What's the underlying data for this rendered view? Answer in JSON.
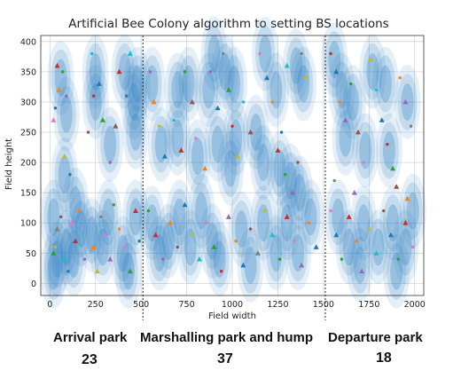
{
  "chart_data": {
    "type": "scatter",
    "title": "Artificial Bee Colony algorithm to setting BS locations",
    "xlabel": "Field width",
    "ylabel": "Field height",
    "xlim": [
      -50,
      2050
    ],
    "ylim": [
      -20,
      410
    ],
    "xticks": [
      0,
      250,
      500,
      750,
      1000,
      1250,
      1500,
      1750,
      2000
    ],
    "yticks": [
      0,
      50,
      100,
      150,
      200,
      250,
      300,
      350,
      400
    ],
    "grid": true,
    "dividers_x": [
      510,
      1510
    ],
    "colors": {
      "coverage": "#2a7fc1",
      "points": [
        "#1f77b4",
        "#ff7f0e",
        "#2ca02c",
        "#d62728",
        "#9467bd",
        "#8c564b",
        "#e377c2",
        "#7f7f7f",
        "#bcbd22",
        "#17becf"
      ]
    },
    "base_stations": [
      [
        60,
        340
      ],
      [
        20,
        110
      ],
      [
        80,
        180
      ],
      [
        90,
        60
      ],
      [
        40,
        40
      ],
      [
        170,
        90
      ],
      [
        130,
        40
      ],
      [
        250,
        350
      ],
      [
        250,
        300
      ],
      [
        230,
        80
      ],
      [
        320,
        110
      ],
      [
        290,
        60
      ],
      [
        410,
        350
      ],
      [
        330,
        230
      ],
      [
        20,
        20
      ],
      [
        400,
        50
      ],
      [
        140,
        130
      ],
      [
        90,
        280
      ],
      [
        480,
        330
      ],
      [
        460,
        300
      ],
      [
        470,
        250
      ],
      [
        470,
        110
      ],
      [
        430,
        20
      ],
      [
        560,
        330
      ],
      [
        610,
        230
      ],
      [
        700,
        240
      ],
      [
        760,
        330
      ],
      [
        810,
        210
      ],
      [
        870,
        320
      ],
      [
        900,
        380
      ],
      [
        960,
        350
      ],
      [
        1010,
        330
      ],
      [
        1020,
        240
      ],
      [
        990,
        190
      ],
      [
        1180,
        380
      ],
      [
        1240,
        320
      ],
      [
        1350,
        360
      ],
      [
        1390,
        330
      ],
      [
        1260,
        190
      ],
      [
        1320,
        170
      ],
      [
        1370,
        150
      ],
      [
        560,
        100
      ],
      [
        650,
        70
      ],
      [
        710,
        110
      ],
      [
        770,
        60
      ],
      [
        830,
        120
      ],
      [
        890,
        70
      ],
      [
        930,
        40
      ],
      [
        1050,
        90
      ],
      [
        1100,
        30
      ],
      [
        1170,
        100
      ],
      [
        1240,
        50
      ],
      [
        1300,
        100
      ],
      [
        1360,
        50
      ],
      [
        1430,
        110
      ],
      [
        920,
        230
      ],
      [
        700,
        320
      ],
      [
        600,
        50
      ],
      [
        1130,
        250
      ],
      [
        1170,
        200
      ],
      [
        1560,
        370
      ],
      [
        1600,
        320
      ],
      [
        1660,
        300
      ],
      [
        1770,
        350
      ],
      [
        1840,
        330
      ],
      [
        1960,
        300
      ],
      [
        1620,
        240
      ],
      [
        1730,
        220
      ],
      [
        1860,
        220
      ],
      [
        1580,
        110
      ],
      [
        1640,
        60
      ],
      [
        1720,
        100
      ],
      [
        1800,
        60
      ],
      [
        1880,
        100
      ],
      [
        1950,
        60
      ],
      [
        1900,
        20
      ],
      [
        1990,
        120
      ],
      [
        1700,
        30
      ]
    ],
    "points": [
      [
        30,
        290,
        0,
        "d"
      ],
      [
        50,
        320,
        1,
        "^"
      ],
      [
        70,
        350,
        2,
        "d"
      ],
      [
        40,
        360,
        3,
        "^"
      ],
      [
        90,
        310,
        4,
        "d"
      ],
      [
        20,
        270,
        6,
        "^"
      ],
      [
        60,
        110,
        5,
        "d"
      ],
      [
        40,
        90,
        7,
        "^"
      ],
      [
        30,
        60,
        8,
        "d"
      ],
      [
        80,
        40,
        9,
        "^"
      ],
      [
        100,
        20,
        0,
        "d"
      ],
      [
        20,
        50,
        2,
        "^"
      ],
      [
        160,
        120,
        1,
        "d"
      ],
      [
        140,
        70,
        3,
        "^"
      ],
      [
        190,
        40,
        4,
        "d"
      ],
      [
        120,
        100,
        6,
        "^"
      ],
      [
        110,
        180,
        0,
        "d"
      ],
      [
        80,
        210,
        8,
        "^"
      ],
      [
        230,
        380,
        9,
        "d"
      ],
      [
        270,
        330,
        0,
        "^"
      ],
      [
        240,
        310,
        3,
        "d"
      ],
      [
        290,
        270,
        2,
        "^"
      ],
      [
        210,
        250,
        5,
        "d"
      ],
      [
        240,
        60,
        1,
        "^"
      ],
      [
        300,
        80,
        6,
        "d"
      ],
      [
        330,
        40,
        4,
        "^"
      ],
      [
        280,
        110,
        7,
        "d"
      ],
      [
        260,
        20,
        8,
        "^"
      ],
      [
        350,
        130,
        2,
        "d"
      ],
      [
        380,
        350,
        3,
        "^"
      ],
      [
        420,
        310,
        0,
        "d"
      ],
      [
        440,
        380,
        9,
        "^"
      ],
      [
        330,
        200,
        4,
        "d"
      ],
      [
        360,
        260,
        5,
        "^"
      ],
      [
        410,
        60,
        6,
        "d"
      ],
      [
        440,
        20,
        2,
        "^"
      ],
      [
        380,
        90,
        1,
        "d"
      ],
      [
        470,
        120,
        3,
        "^"
      ],
      [
        490,
        70,
        0,
        "d"
      ],
      [
        550,
        350,
        4,
        "d"
      ],
      [
        570,
        300,
        1,
        "^"
      ],
      [
        600,
        260,
        8,
        "d"
      ],
      [
        630,
        210,
        0,
        "^"
      ],
      [
        680,
        270,
        9,
        "d"
      ],
      [
        720,
        220,
        3,
        "^"
      ],
      [
        740,
        350,
        2,
        "d"
      ],
      [
        780,
        300,
        5,
        "^"
      ],
      [
        800,
        240,
        6,
        "d"
      ],
      [
        850,
        190,
        1,
        "^"
      ],
      [
        880,
        350,
        4,
        "d"
      ],
      [
        920,
        290,
        0,
        "^"
      ],
      [
        950,
        380,
        7,
        "d"
      ],
      [
        980,
        320,
        2,
        "^"
      ],
      [
        1000,
        260,
        3,
        "d"
      ],
      [
        1030,
        210,
        8,
        "^"
      ],
      [
        1060,
        300,
        9,
        "d"
      ],
      [
        1100,
        250,
        5,
        "^"
      ],
      [
        1150,
        380,
        6,
        "d"
      ],
      [
        1190,
        340,
        0,
        "^"
      ],
      [
        1220,
        300,
        1,
        "d"
      ],
      [
        1250,
        220,
        3,
        "^"
      ],
      [
        1290,
        180,
        2,
        "d"
      ],
      [
        1330,
        150,
        4,
        "^"
      ],
      [
        1360,
        200,
        5,
        "d"
      ],
      [
        1400,
        340,
        8,
        "^"
      ],
      [
        1380,
        380,
        7,
        "d"
      ],
      [
        1300,
        360,
        9,
        "^"
      ],
      [
        1270,
        250,
        0,
        "d"
      ],
      [
        540,
        120,
        2,
        "d"
      ],
      [
        580,
        80,
        3,
        "^"
      ],
      [
        620,
        40,
        4,
        "d"
      ],
      [
        660,
        100,
        1,
        "^"
      ],
      [
        700,
        60,
        5,
        "d"
      ],
      [
        740,
        130,
        0,
        "^"
      ],
      [
        780,
        80,
        8,
        "d"
      ],
      [
        820,
        40,
        9,
        "^"
      ],
      [
        860,
        100,
        6,
        "d"
      ],
      [
        900,
        60,
        2,
        "^"
      ],
      [
        940,
        20,
        3,
        "d"
      ],
      [
        980,
        110,
        4,
        "^"
      ],
      [
        1020,
        70,
        1,
        "d"
      ],
      [
        1060,
        30,
        0,
        "^"
      ],
      [
        1100,
        90,
        5,
        "d"
      ],
      [
        1140,
        50,
        7,
        "^"
      ],
      [
        1180,
        120,
        8,
        "d"
      ],
      [
        1220,
        80,
        9,
        "^"
      ],
      [
        1260,
        40,
        2,
        "d"
      ],
      [
        1300,
        110,
        3,
        "^"
      ],
      [
        1340,
        70,
        6,
        "d"
      ],
      [
        1380,
        30,
        4,
        "^"
      ],
      [
        1420,
        100,
        1,
        "d"
      ],
      [
        1460,
        60,
        0,
        "^"
      ],
      [
        1540,
        380,
        3,
        "d"
      ],
      [
        1570,
        350,
        0,
        "^"
      ],
      [
        1590,
        300,
        1,
        "d"
      ],
      [
        1620,
        270,
        4,
        "^"
      ],
      [
        1650,
        330,
        2,
        "d"
      ],
      [
        1690,
        250,
        5,
        "^"
      ],
      [
        1720,
        200,
        6,
        "d"
      ],
      [
        1760,
        370,
        8,
        "^"
      ],
      [
        1790,
        320,
        9,
        "d"
      ],
      [
        1820,
        270,
        0,
        "^"
      ],
      [
        1850,
        230,
        3,
        "d"
      ],
      [
        1880,
        190,
        2,
        "^"
      ],
      [
        1920,
        340,
        1,
        "d"
      ],
      [
        1950,
        300,
        4,
        "^"
      ],
      [
        1980,
        260,
        7,
        "d"
      ],
      [
        1900,
        160,
        5,
        "^"
      ],
      [
        1540,
        120,
        6,
        "d"
      ],
      [
        1570,
        80,
        0,
        "^"
      ],
      [
        1600,
        40,
        2,
        "d"
      ],
      [
        1640,
        110,
        3,
        "^"
      ],
      [
        1680,
        70,
        1,
        "d"
      ],
      [
        1710,
        20,
        4,
        "^"
      ],
      [
        1750,
        90,
        8,
        "d"
      ],
      [
        1790,
        50,
        9,
        "^"
      ],
      [
        1830,
        120,
        5,
        "d"
      ],
      [
        1870,
        80,
        0,
        "^"
      ],
      [
        1910,
        40,
        2,
        "d"
      ],
      [
        1950,
        100,
        3,
        "^"
      ],
      [
        1990,
        60,
        6,
        "d"
      ],
      [
        1960,
        140,
        1,
        "^"
      ],
      [
        1560,
        170,
        7,
        "d"
      ],
      [
        1670,
        150,
        4,
        "^"
      ]
    ]
  },
  "parks": [
    {
      "name": "Arrival park",
      "count": "23"
    },
    {
      "name": "Marshalling park and hump",
      "count": "37"
    },
    {
      "name": "Departure park",
      "count": "18"
    }
  ]
}
